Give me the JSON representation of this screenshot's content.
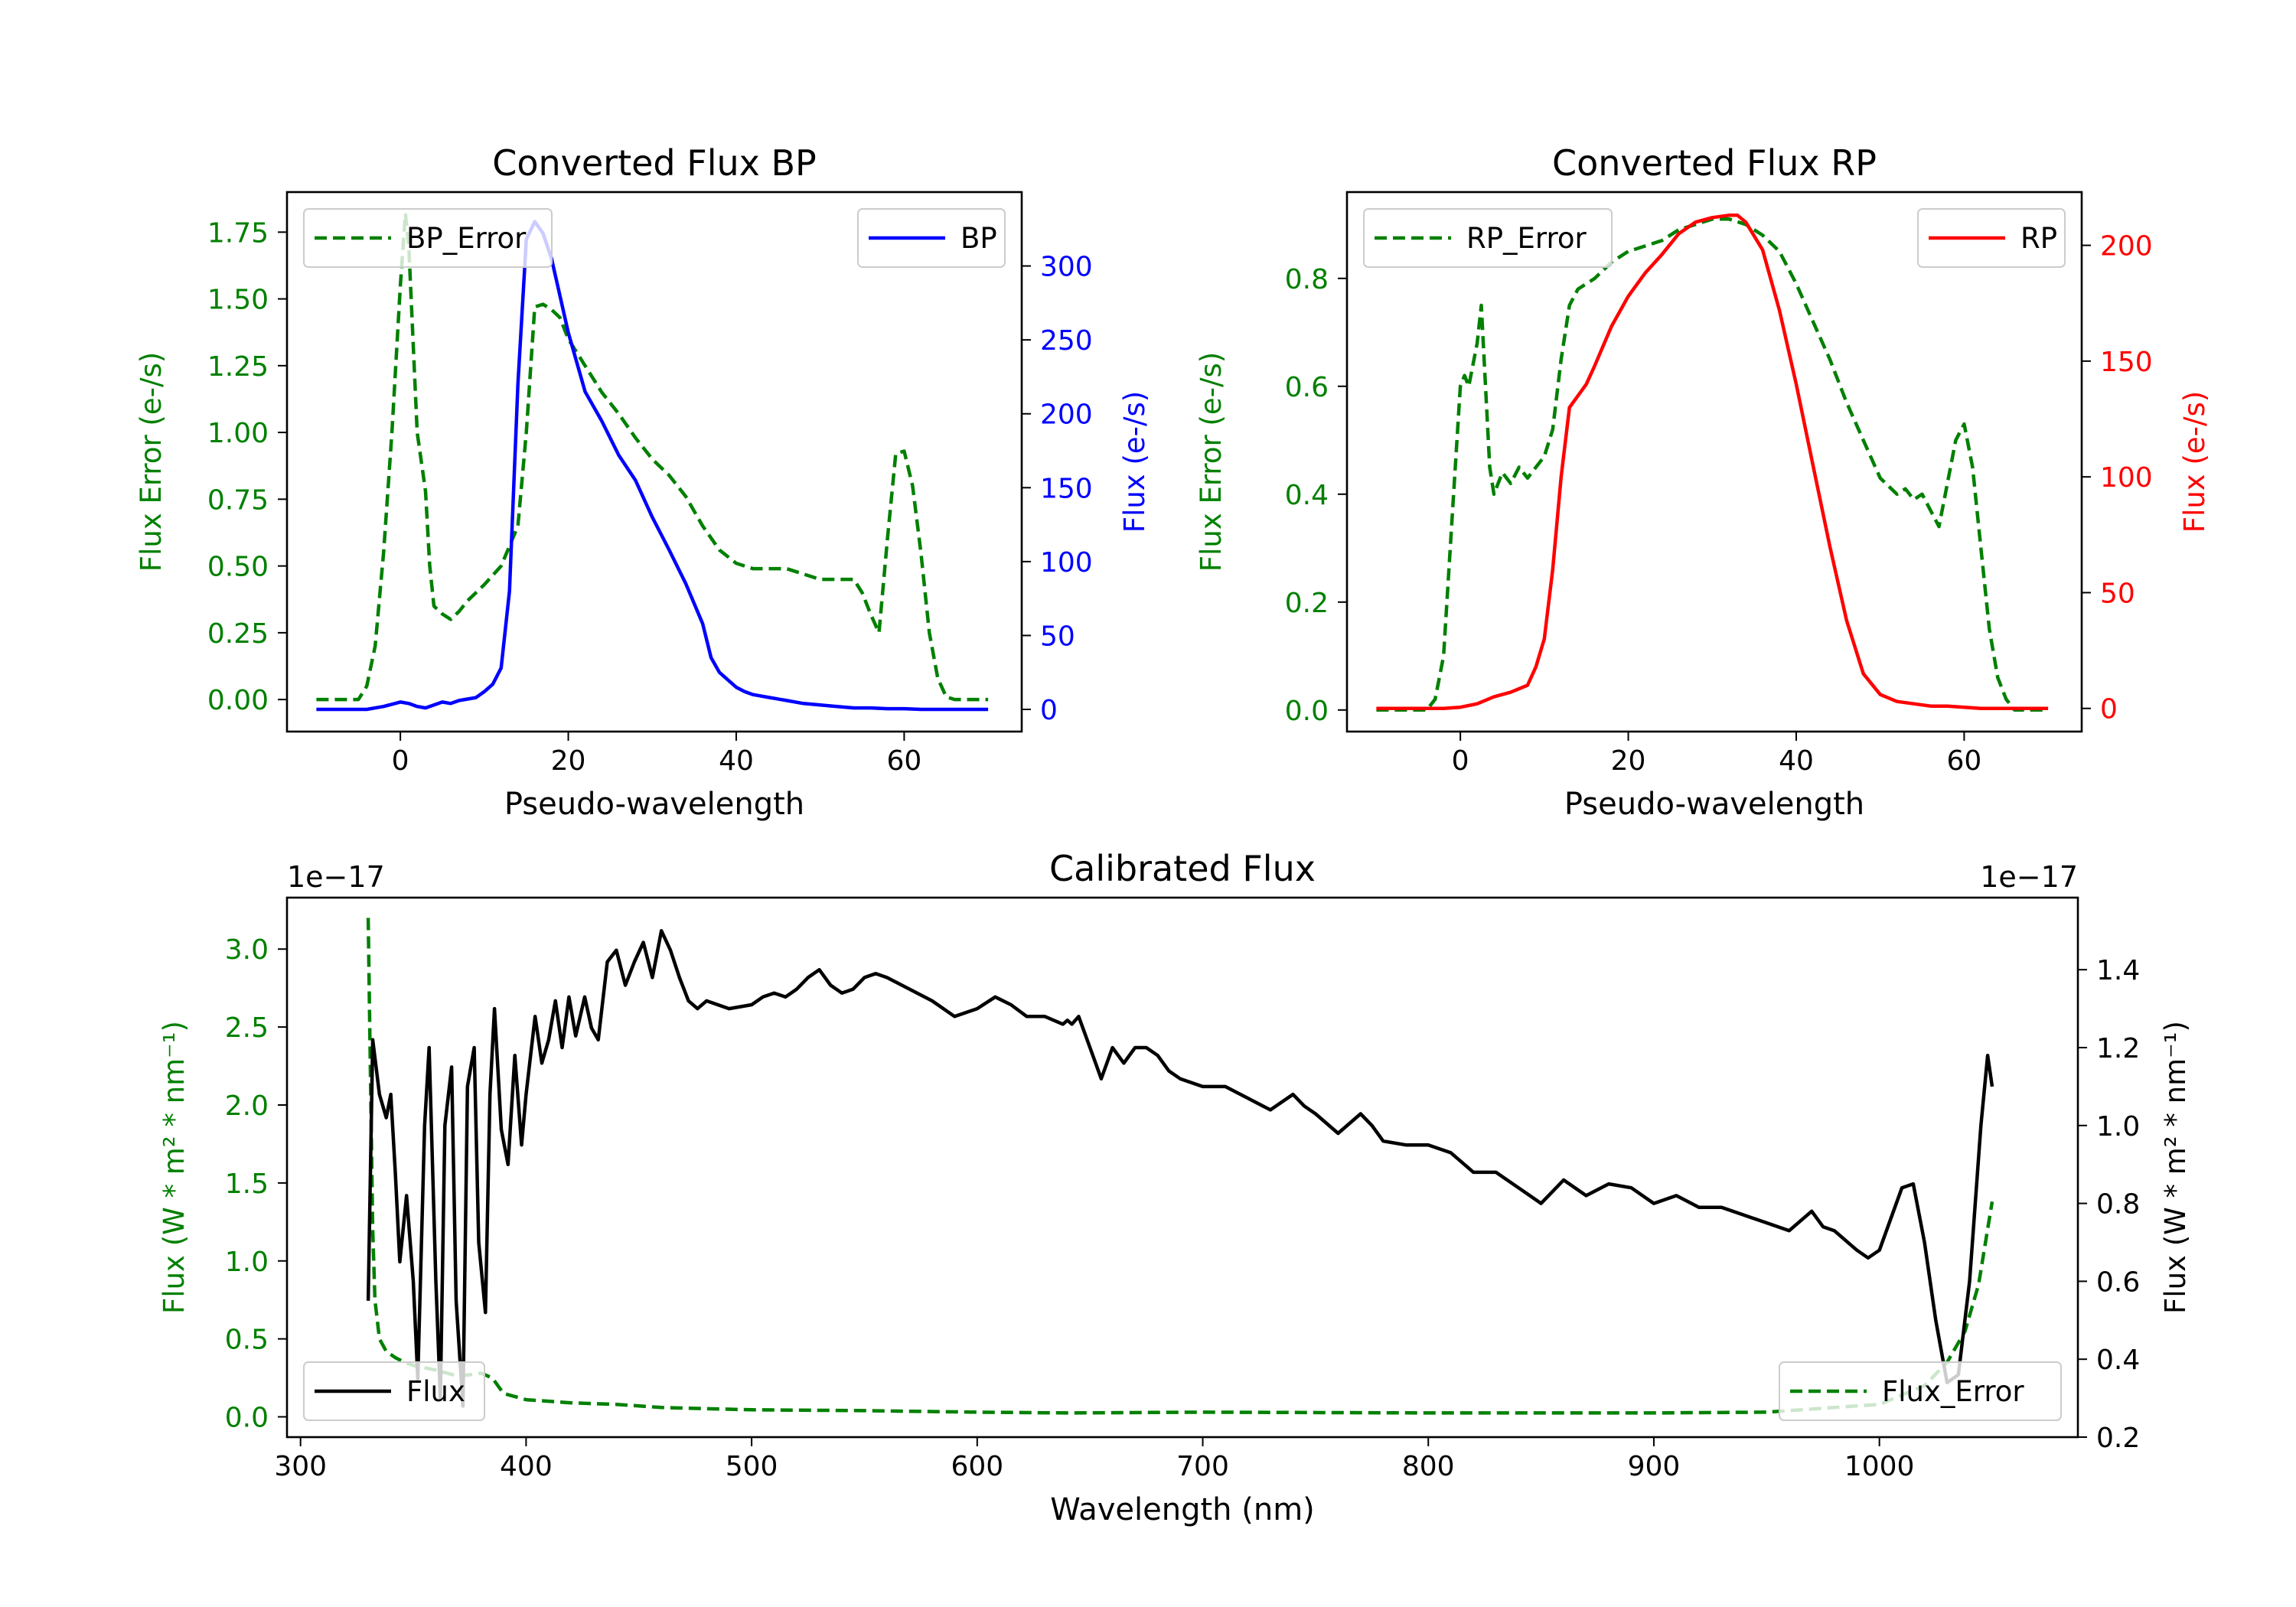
{
  "chart_data": [
    {
      "id": "bp",
      "type": "line",
      "title": "Converted Flux BP",
      "xlabel": "Pseudo-wavelength",
      "ylabel_left": "Flux Error (e-/s)",
      "ylabel_right": "Flux (e-/s)",
      "xlim": [
        -13.5,
        74
      ],
      "ylim_left": [
        -0.12,
        1.9
      ],
      "ylim_right": [
        -15,
        350
      ],
      "xticks": [
        0,
        20,
        40,
        60
      ],
      "xtick_labels": [
        "0",
        "20",
        "40",
        "60"
      ],
      "yticks_left": [
        0,
        0.25,
        0.5,
        0.75,
        1.0,
        1.25,
        1.5,
        1.75
      ],
      "ytick_labels_left": [
        "0.00",
        "0.25",
        "0.50",
        "0.75",
        "1.00",
        "1.25",
        "1.50",
        "1.75"
      ],
      "yticks_right": [
        0,
        50,
        100,
        150,
        200,
        250,
        300
      ],
      "ytick_labels_right": [
        "0",
        "50",
        "100",
        "150",
        "200",
        "250",
        "300"
      ],
      "left_color": "#008000",
      "right_color": "#0000ff",
      "legend_left": {
        "label": "BP_Error",
        "placement": "upper-left",
        "style": "dashed",
        "color": "#008000"
      },
      "legend_right": {
        "label": "BP",
        "placement": "upper-right",
        "style": "solid",
        "color": "#0000ff"
      },
      "series": [
        {
          "name": "BP_Error",
          "axis": "left",
          "style": "dashed",
          "color": "#008000",
          "x": [
            -10,
            -5,
            -4,
            -3,
            -2,
            -1,
            0,
            0.6,
            1,
            1.5,
            2,
            3,
            3.5,
            4,
            5,
            6,
            7,
            8,
            9,
            10,
            12,
            14,
            15,
            16,
            17,
            18,
            19,
            20,
            22,
            24,
            26,
            28,
            30,
            32,
            34,
            36,
            38,
            40,
            42,
            44,
            46,
            48,
            50,
            52,
            54,
            55,
            56,
            57,
            58,
            59,
            60,
            61,
            62,
            63,
            64,
            65,
            66,
            70
          ],
          "y": [
            0,
            0,
            0.05,
            0.2,
            0.55,
            1.0,
            1.55,
            1.82,
            1.7,
            1.35,
            1.0,
            0.78,
            0.5,
            0.35,
            0.32,
            0.3,
            0.33,
            0.37,
            0.4,
            0.43,
            0.5,
            0.65,
            1.0,
            1.47,
            1.48,
            1.46,
            1.43,
            1.35,
            1.25,
            1.15,
            1.07,
            0.98,
            0.9,
            0.84,
            0.76,
            0.65,
            0.56,
            0.51,
            0.49,
            0.49,
            0.49,
            0.47,
            0.45,
            0.45,
            0.45,
            0.4,
            0.32,
            0.25,
            0.6,
            0.92,
            0.93,
            0.8,
            0.55,
            0.25,
            0.08,
            0.01,
            0,
            0
          ]
        },
        {
          "name": "BP",
          "axis": "right",
          "style": "solid",
          "color": "#0000ff",
          "x": [
            -10,
            -4,
            -2,
            0,
            1,
            2,
            3,
            4,
            5,
            6,
            7,
            8,
            9,
            10,
            11,
            12,
            13,
            14,
            15,
            16,
            17,
            18,
            19,
            20,
            21,
            22,
            24,
            26,
            28,
            30,
            32,
            34,
            36,
            37,
            38,
            40,
            41,
            42,
            44,
            46,
            48,
            50,
            52,
            54,
            56,
            58,
            60,
            62,
            64,
            66,
            70
          ],
          "y": [
            0,
            0,
            2,
            5,
            4,
            2,
            1,
            3,
            5,
            4,
            6,
            7,
            8,
            12,
            17,
            28,
            80,
            220,
            318,
            330,
            322,
            305,
            280,
            255,
            235,
            215,
            195,
            172,
            155,
            130,
            108,
            85,
            58,
            35,
            25,
            15,
            12,
            10,
            8,
            6,
            4,
            3,
            2,
            1,
            1,
            0.5,
            0.5,
            0,
            0,
            0,
            0
          ]
        }
      ]
    },
    {
      "id": "rp",
      "type": "line",
      "title": "Converted Flux RP",
      "xlabel": "Pseudo-wavelength",
      "ylabel_left": "Flux Error (e-/s)",
      "ylabel_right": "Flux (e-/s)",
      "xlim": [
        -13.5,
        74
      ],
      "ylim_left": [
        -0.04,
        0.96
      ],
      "ylim_right": [
        -10,
        223
      ],
      "xticks": [
        0,
        20,
        40,
        60
      ],
      "xtick_labels": [
        "0",
        "20",
        "40",
        "60"
      ],
      "yticks_left": [
        0,
        0.2,
        0.4,
        0.6,
        0.8
      ],
      "ytick_labels_left": [
        "0.0",
        "0.2",
        "0.4",
        "0.6",
        "0.8"
      ],
      "yticks_right": [
        0,
        50,
        100,
        150,
        200
      ],
      "ytick_labels_right": [
        "0",
        "50",
        "100",
        "150",
        "200"
      ],
      "left_color": "#008000",
      "right_color": "#ff0000",
      "legend_left": {
        "label": "RP_Error",
        "placement": "upper-left",
        "style": "dashed",
        "color": "#008000"
      },
      "legend_right": {
        "label": "RP",
        "placement": "upper-right",
        "style": "solid",
        "color": "#ff0000"
      },
      "series": [
        {
          "name": "RP_Error",
          "axis": "left",
          "style": "dashed",
          "color": "#008000",
          "x": [
            -10,
            -4,
            -3,
            -2,
            -1,
            0,
            0.5,
            1,
            2,
            2.5,
            3,
            3.5,
            4,
            5,
            6,
            7,
            8,
            9,
            10,
            11,
            12,
            13,
            14,
            16,
            18,
            20,
            22,
            24,
            26,
            28,
            30,
            32,
            34,
            36,
            38,
            40,
            42,
            44,
            46,
            48,
            50,
            52,
            53,
            54,
            55,
            56,
            57,
            58,
            59,
            60,
            61,
            62,
            63,
            64,
            65,
            66,
            70
          ],
          "y": [
            0,
            0,
            0.02,
            0.1,
            0.35,
            0.6,
            0.62,
            0.6,
            0.68,
            0.75,
            0.6,
            0.45,
            0.4,
            0.44,
            0.42,
            0.45,
            0.43,
            0.45,
            0.47,
            0.52,
            0.65,
            0.75,
            0.78,
            0.8,
            0.83,
            0.85,
            0.86,
            0.87,
            0.89,
            0.9,
            0.91,
            0.91,
            0.9,
            0.88,
            0.85,
            0.79,
            0.72,
            0.65,
            0.57,
            0.5,
            0.43,
            0.4,
            0.41,
            0.39,
            0.4,
            0.37,
            0.34,
            0.42,
            0.5,
            0.53,
            0.45,
            0.3,
            0.15,
            0.06,
            0.02,
            0,
            0
          ]
        },
        {
          "name": "RP",
          "axis": "right",
          "style": "solid",
          "color": "#ff0000",
          "x": [
            -10,
            -2,
            0,
            2,
            4,
            6,
            8,
            9,
            10,
            11,
            12,
            13,
            14,
            15,
            16,
            18,
            20,
            22,
            24,
            26,
            28,
            30,
            32,
            33,
            34,
            36,
            38,
            40,
            42,
            44,
            46,
            48,
            50,
            52,
            54,
            56,
            58,
            60,
            62,
            64,
            66,
            70
          ],
          "y": [
            0,
            0,
            0.5,
            2,
            5,
            7,
            10,
            18,
            30,
            60,
            100,
            130,
            135,
            140,
            148,
            165,
            178,
            188,
            196,
            205,
            210,
            212,
            213,
            213,
            210,
            198,
            172,
            140,
            105,
            70,
            38,
            15,
            6,
            3,
            2,
            1,
            1,
            0.5,
            0,
            0,
            0,
            0
          ]
        }
      ]
    },
    {
      "id": "calib",
      "type": "line",
      "title": "Calibrated Flux",
      "xlabel": "Wavelength (nm)",
      "ylabel_left": "Flux (W * m² * nm⁻¹)",
      "ylabel_right": "Flux (W * m² * nm⁻¹)",
      "offset_left": "1e−17",
      "offset_right": "1e−17",
      "xlim": [
        294,
        1088
      ],
      "ylim_left": [
        -0.13,
        3.33
      ],
      "ylim_right": [
        0.2,
        1.585
      ],
      "xticks": [
        300,
        400,
        500,
        600,
        700,
        800,
        900,
        1000
      ],
      "xtick_labels": [
        "300",
        "400",
        "500",
        "600",
        "700",
        "800",
        "900",
        "1000"
      ],
      "yticks_left": [
        0,
        0.5,
        1.0,
        1.5,
        2.0,
        2.5,
        3.0
      ],
      "ytick_labels_left": [
        "0.0",
        "0.5",
        "1.0",
        "1.5",
        "2.0",
        "2.5",
        "3.0"
      ],
      "yticks_right": [
        0.2,
        0.4,
        0.6,
        0.8,
        1.0,
        1.2,
        1.4
      ],
      "ytick_labels_right": [
        "0.2",
        "0.4",
        "0.6",
        "0.8",
        "1.0",
        "1.2",
        "1.4"
      ],
      "left_color": "#008000",
      "right_color": "#000000",
      "legend_left": {
        "label": "Flux",
        "placement": "lower-left",
        "style": "solid",
        "color": "#000000"
      },
      "legend_right": {
        "label": "Flux_Error",
        "placement": "lower-right",
        "style": "dashed",
        "color": "#008000"
      },
      "series": [
        {
          "name": "Flux_Error",
          "axis": "left",
          "style": "dashed",
          "color": "#008000",
          "x": [
            330,
            331,
            332,
            333,
            335,
            338,
            342,
            346,
            350,
            360,
            370,
            375,
            380,
            385,
            390,
            400,
            420,
            440,
            460,
            500,
            550,
            600,
            640,
            700,
            800,
            900,
            950,
            1000,
            1020,
            1030,
            1038,
            1044,
            1050
          ],
          "y": [
            3.2,
            2.2,
            1.2,
            0.75,
            0.5,
            0.42,
            0.38,
            0.35,
            0.33,
            0.3,
            0.26,
            0.27,
            0.28,
            0.25,
            0.15,
            0.11,
            0.09,
            0.08,
            0.06,
            0.045,
            0.04,
            0.03,
            0.025,
            0.03,
            0.025,
            0.025,
            0.03,
            0.08,
            0.2,
            0.35,
            0.55,
            0.85,
            1.38
          ]
        },
        {
          "name": "Flux",
          "axis": "right",
          "style": "solid",
          "color": "#000000",
          "x": [
            330,
            332,
            335,
            338,
            340,
            342,
            344,
            347,
            350,
            352,
            355,
            357,
            360,
            362,
            364,
            367,
            369,
            372,
            374,
            377,
            379,
            382,
            384,
            386,
            389,
            392,
            395,
            398,
            400,
            404,
            407,
            410,
            413,
            416,
            419,
            422,
            426,
            429,
            432,
            436,
            440,
            444,
            448,
            452,
            456,
            460,
            464,
            468,
            472,
            476,
            480,
            490,
            500,
            505,
            510,
            515,
            520,
            525,
            530,
            535,
            540,
            545,
            550,
            555,
            560,
            570,
            580,
            590,
            600,
            608,
            615,
            622,
            630,
            638,
            640,
            642,
            645,
            650,
            655,
            660,
            665,
            670,
            675,
            680,
            685,
            690,
            700,
            710,
            720,
            730,
            740,
            745,
            750,
            760,
            770,
            775,
            780,
            790,
            800,
            810,
            820,
            830,
            840,
            845,
            850,
            860,
            870,
            880,
            890,
            900,
            910,
            920,
            930,
            940,
            950,
            960,
            970,
            975,
            980,
            990,
            995,
            1000,
            1010,
            1015,
            1020,
            1025,
            1030,
            1035,
            1040,
            1045,
            1048,
            1050
          ],
          "y": [
            0.55,
            1.22,
            1.08,
            1.02,
            1.08,
            0.88,
            0.65,
            0.82,
            0.6,
            0.35,
            1.0,
            1.2,
            0.6,
            0.3,
            1.0,
            1.15,
            0.55,
            0.28,
            1.1,
            1.2,
            0.7,
            0.52,
            1.08,
            1.3,
            0.99,
            0.9,
            1.18,
            0.95,
            1.08,
            1.28,
            1.16,
            1.22,
            1.32,
            1.2,
            1.33,
            1.23,
            1.33,
            1.25,
            1.22,
            1.42,
            1.45,
            1.36,
            1.42,
            1.47,
            1.38,
            1.5,
            1.45,
            1.38,
            1.32,
            1.3,
            1.32,
            1.3,
            1.31,
            1.33,
            1.34,
            1.33,
            1.35,
            1.38,
            1.4,
            1.36,
            1.34,
            1.35,
            1.38,
            1.39,
            1.38,
            1.35,
            1.32,
            1.28,
            1.3,
            1.33,
            1.31,
            1.28,
            1.28,
            1.26,
            1.27,
            1.26,
            1.28,
            1.2,
            1.12,
            1.2,
            1.16,
            1.2,
            1.2,
            1.18,
            1.14,
            1.12,
            1.1,
            1.1,
            1.07,
            1.04,
            1.08,
            1.05,
            1.03,
            0.98,
            1.03,
            1.0,
            0.96,
            0.95,
            0.95,
            0.93,
            0.88,
            0.88,
            0.84,
            0.82,
            0.8,
            0.86,
            0.82,
            0.85,
            0.84,
            0.8,
            0.82,
            0.79,
            0.79,
            0.77,
            0.75,
            0.73,
            0.78,
            0.74,
            0.73,
            0.68,
            0.66,
            0.68,
            0.84,
            0.85,
            0.7,
            0.5,
            0.34,
            0.36,
            0.6,
            1.0,
            1.18,
            1.1
          ]
        }
      ]
    }
  ]
}
